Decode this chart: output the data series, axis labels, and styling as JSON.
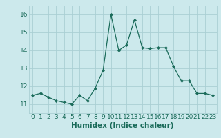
{
  "x": [
    0,
    1,
    2,
    3,
    4,
    5,
    6,
    7,
    8,
    9,
    10,
    11,
    12,
    13,
    14,
    15,
    16,
    17,
    18,
    19,
    20,
    21,
    22,
    23
  ],
  "y": [
    11.5,
    11.6,
    11.4,
    11.2,
    11.1,
    11.0,
    11.5,
    11.2,
    11.9,
    12.9,
    16.0,
    14.0,
    14.3,
    15.7,
    14.15,
    14.1,
    14.15,
    14.15,
    13.1,
    12.3,
    12.3,
    11.6,
    11.6,
    11.5
  ],
  "line_color": "#1a6b5a",
  "marker": "D",
  "marker_size": 2.2,
  "bg_color": "#cce9ec",
  "grid_color": "#aacfd4",
  "xlabel": "Humidex (Indice chaleur)",
  "xlabel_fontsize": 7.5,
  "tick_fontsize": 6.5,
  "ylim": [
    10.5,
    16.5
  ],
  "xlim": [
    -0.5,
    23.5
  ],
  "yticks": [
    11,
    12,
    13,
    14,
    15,
    16
  ],
  "xticks": [
    0,
    1,
    2,
    3,
    4,
    5,
    6,
    7,
    8,
    9,
    10,
    11,
    12,
    13,
    14,
    15,
    16,
    17,
    18,
    19,
    20,
    21,
    22,
    23
  ]
}
